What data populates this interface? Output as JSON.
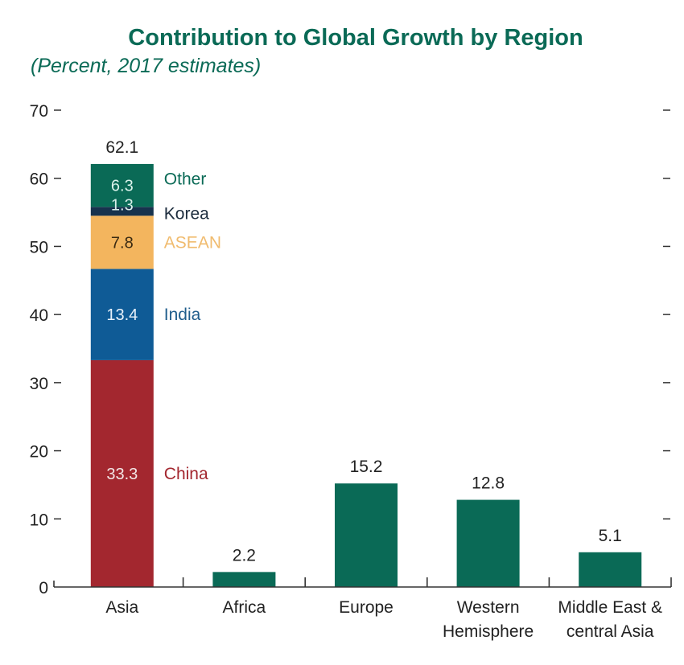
{
  "chart_data": {
    "type": "bar",
    "stacked_first_category": true,
    "title": "Contribution to Global Growth by Region",
    "subtitle": "(Percent, 2017 estimates)",
    "xlabel": "",
    "ylabel": "",
    "ylim": [
      0,
      70
    ],
    "yticks": [
      0,
      10,
      20,
      30,
      40,
      50,
      60,
      70
    ],
    "ytick_labels": [
      "0",
      "10",
      "20",
      "30",
      "40",
      "50",
      "60",
      "70"
    ],
    "grid": false,
    "categories": [
      {
        "label_lines": [
          "Asia"
        ]
      },
      {
        "label_lines": [
          "Africa"
        ]
      },
      {
        "label_lines": [
          "Europe"
        ]
      },
      {
        "label_lines": [
          "Western",
          "Hemisphere"
        ]
      },
      {
        "label_lines": [
          "Middle East &",
          "central Asia"
        ]
      }
    ],
    "totals": [
      62.1,
      2.2,
      15.2,
      12.8,
      5.1
    ],
    "total_labels": [
      "62.1",
      "2.2",
      "15.2",
      "12.8",
      "5.1"
    ],
    "asia_breakdown": [
      {
        "name": "China",
        "value": 33.3,
        "label": "33.3",
        "color": "#a3272f",
        "text_color": "#f3e6e6",
        "legend_color": "#a3272f"
      },
      {
        "name": "India",
        "value": 13.4,
        "label": "13.4",
        "color": "#0f5b96",
        "text_color": "#e8f1fa",
        "legend_color": "#1f5d8c"
      },
      {
        "name": "ASEAN",
        "value": 7.8,
        "label": "7.8",
        "color": "#f3b55e",
        "text_color": "#3a2a12",
        "legend_color": "#f0bb6e"
      },
      {
        "name": "Korea",
        "value": 1.3,
        "label": "1.3",
        "color": "#17324d",
        "text_color": "#d9eee9",
        "legend_color": "#1d2d3e"
      },
      {
        "name": "Other",
        "value": 6.3,
        "label": "6.3",
        "color": "#0a6a56",
        "text_color": "#d9f2ea",
        "legend_color": "#0a6a56"
      }
    ],
    "bar_color": "#0a6a56",
    "legend": "inline-right-of-asia-bar"
  }
}
